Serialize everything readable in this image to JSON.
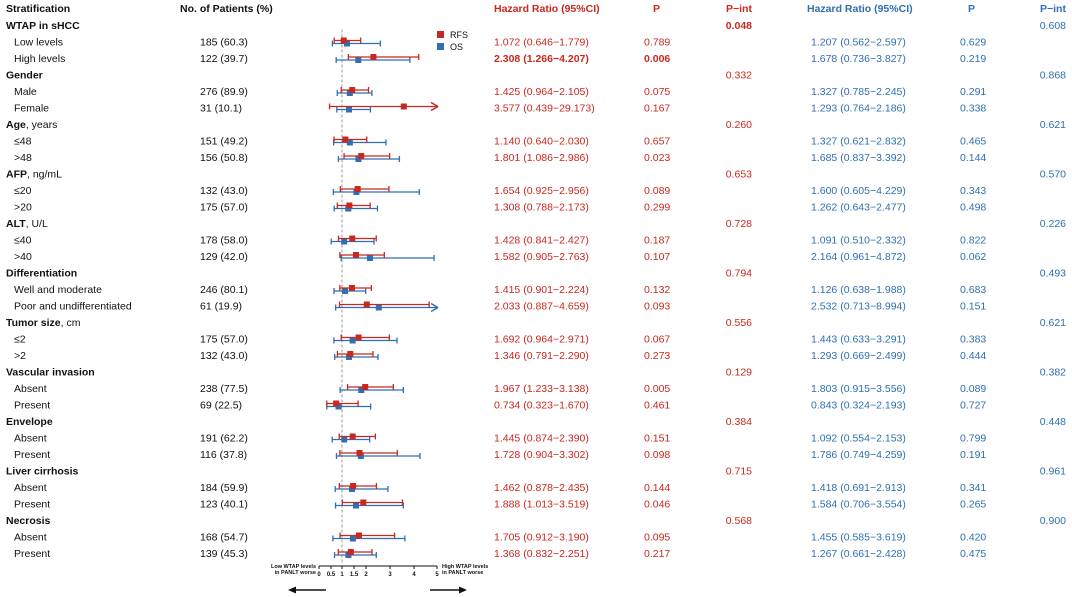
{
  "chart_data": {
    "type": "forest",
    "title": "",
    "columns": {
      "stratification": "Stratification",
      "patients": "No. of Patients (%)",
      "hr_rfs": "Hazard Ratio (95%CI)",
      "p_rfs": "P",
      "pint_rfs": "P−int",
      "hr_os": "Hazard Ratio (95%CI)",
      "p_os": "P",
      "pint_os": "P−int"
    },
    "legend": [
      {
        "name": "RFS",
        "color": "#c8281f"
      },
      {
        "name": "OS",
        "color": "#2f6fb2"
      }
    ],
    "axis": {
      "ticks": [
        0,
        0.5,
        1,
        1.5,
        2,
        3,
        4,
        5
      ],
      "tick_labels": [
        "0",
        "0.5",
        "1",
        "1.5",
        "2",
        "3",
        "4",
        "5"
      ],
      "reference_line": 1,
      "left_note": [
        "Low WTAP levels",
        "in PANLT worse"
      ],
      "right_note": [
        "High WTAP levels",
        "in PANLT worse"
      ]
    },
    "groups": [
      {
        "label": "WTAP in sHCC",
        "unit": "",
        "pint_rfs": "0.048",
        "pint_os": "0.608",
        "pint_rfs_bold": true,
        "rows": [
          {
            "label": "Low levels",
            "n": "185 (60.3)",
            "rfs": [
              1.072,
              0.646,
              1.779
            ],
            "rfs_text": "1.072 (0.646−1.779)",
            "p_rfs": "0.789",
            "os": [
              1.207,
              0.562,
              2.597
            ],
            "os_text": "1.207 (0.562−2.597)",
            "p_os": "0.629"
          },
          {
            "label": "High levels",
            "n": "122 (39.7)",
            "rfs": [
              2.308,
              1.266,
              4.207
            ],
            "rfs_text": "2.308 (1.266−4.207)",
            "p_rfs": "0.006",
            "bold_rfs": true,
            "os": [
              1.678,
              0.736,
              3.827
            ],
            "os_text": "1.678 (0.736−3.827)",
            "p_os": "0.219"
          }
        ]
      },
      {
        "label": "Gender",
        "unit": "",
        "pint_rfs": "0.332",
        "pint_os": "0.868",
        "rows": [
          {
            "label": "Male",
            "n": "276 (89.9)",
            "rfs": [
              1.425,
              0.964,
              2.105
            ],
            "rfs_text": "1.425 (0.964−2.105)",
            "p_rfs": "0.075",
            "os": [
              1.327,
              0.785,
              2.245
            ],
            "os_text": "1.327 (0.785−2.245)",
            "p_os": "0.291"
          },
          {
            "label": "Female",
            "n": "31 (10.1)",
            "rfs": [
              3.577,
              0.439,
              29.173
            ],
            "rfs_text": "3.577 (0.439−29.173)",
            "p_rfs": "0.167",
            "os": [
              1.293,
              0.764,
              2.186
            ],
            "os_text": "1.293 (0.764−2.186)",
            "p_os": "0.338"
          }
        ]
      },
      {
        "label": "Age",
        "unit": ", years",
        "pint_rfs": "0.260",
        "pint_os": "0.621",
        "rows": [
          {
            "label": "≤48",
            "n": "151 (49.2)",
            "rfs": [
              1.14,
              0.64,
              2.03
            ],
            "rfs_text": "1.140 (0.640−2.030)",
            "p_rfs": "0.657",
            "os": [
              1.327,
              0.621,
              2.832
            ],
            "os_text": "1.327 (0.621−2.832)",
            "p_os": "0.465"
          },
          {
            "label": ">48",
            "n": "156 (50.8)",
            "rfs": [
              1.801,
              1.086,
              2.986
            ],
            "rfs_text": "1.801 (1.086−2.986)",
            "p_rfs": "0.023",
            "os": [
              1.685,
              0.837,
              3.392
            ],
            "os_text": "1.685 (0.837−3.392)",
            "p_os": "0.144"
          }
        ]
      },
      {
        "label": "AFP",
        "unit": ", ng/mL",
        "pint_rfs": "0.653",
        "pint_os": "0.570",
        "rows": [
          {
            "label": "≤20",
            "n": "132 (43.0)",
            "rfs": [
              1.654,
              0.925,
              2.956
            ],
            "rfs_text": "1.654 (0.925−2.956)",
            "p_rfs": "0.089",
            "os": [
              1.6,
              0.605,
              4.229
            ],
            "os_text": "1.600 (0.605−4.229)",
            "p_os": "0.343"
          },
          {
            "label": ">20",
            "n": "175 (57.0)",
            "rfs": [
              1.308,
              0.788,
              2.173
            ],
            "rfs_text": "1.308 (0.788−2.173)",
            "p_rfs": "0.299",
            "os": [
              1.262,
              0.643,
              2.477
            ],
            "os_text": "1.262 (0.643−2.477)",
            "p_os": "0.498"
          }
        ]
      },
      {
        "label": "ALT",
        "unit": ", U/L",
        "pint_rfs": "0.728",
        "pint_os": "0.226",
        "rows": [
          {
            "label": "≤40",
            "n": "178 (58.0)",
            "rfs": [
              1.428,
              0.841,
              2.427
            ],
            "rfs_text": "1.428 (0.841−2.427)",
            "p_rfs": "0.187",
            "os": [
              1.091,
              0.51,
              2.332
            ],
            "os_text": "1.091 (0.510−2.332)",
            "p_os": "0.822"
          },
          {
            "label": ">40",
            "n": "129 (42.0)",
            "rfs": [
              1.582,
              0.905,
              2.763
            ],
            "rfs_text": "1.582 (0.905−2.763)",
            "p_rfs": "0.107",
            "os": [
              2.164,
              0.961,
              4.872
            ],
            "os_text": "2.164 (0.961−4.872)",
            "p_os": "0.062"
          }
        ]
      },
      {
        "label": "Differentiation",
        "unit": "",
        "pint_rfs": "0.794",
        "pint_os": "0.493",
        "rows": [
          {
            "label": "Well and moderate",
            "n": "246 (80.1)",
            "rfs": [
              1.415,
              0.901,
              2.224
            ],
            "rfs_text": "1.415 (0.901−2.224)",
            "p_rfs": "0.132",
            "os": [
              1.126,
              0.638,
              1.988
            ],
            "os_text": "1.126 (0.638−1.988)",
            "p_os": "0.683"
          },
          {
            "label": "Poor and undifferentiated",
            "n": "61 (19.9)",
            "rfs": [
              2.033,
              0.887,
              4.659
            ],
            "rfs_text": "2.033 (0.887−4.659)",
            "p_rfs": "0.093",
            "os": [
              2.532,
              0.713,
              8.994
            ],
            "os_text": "2.532 (0.713−8.994)",
            "p_os": "0.151"
          }
        ]
      },
      {
        "label": "Tumor size",
        "unit": ", cm",
        "pint_rfs": "0.556",
        "pint_os": "0.621",
        "rows": [
          {
            "label": "≤2",
            "n": "175 (57.0)",
            "rfs": [
              1.692,
              0.964,
              2.971
            ],
            "rfs_text": "1.692 (0.964−2.971)",
            "p_rfs": "0.067",
            "os": [
              1.443,
              0.633,
              3.291
            ],
            "os_text": "1.443 (0.633−3.291)",
            "p_os": "0.383"
          },
          {
            "label": ">2",
            "n": "132 (43.0)",
            "rfs": [
              1.346,
              0.791,
              2.29
            ],
            "rfs_text": "1.346 (0.791−2.290)",
            "p_rfs": "0.273",
            "os": [
              1.293,
              0.669,
              2.499
            ],
            "os_text": "1.293 (0.669−2.499)",
            "p_os": "0.444"
          }
        ]
      },
      {
        "label": "Vascular invasion",
        "unit": "",
        "pint_rfs": "0.129",
        "pint_os": "0.382",
        "rows": [
          {
            "label": "Absent",
            "n": "238 (77.5)",
            "rfs": [
              1.967,
              1.233,
              3.138
            ],
            "rfs_text": "1.967 (1.233−3.138)",
            "p_rfs": "0.005",
            "os": [
              1.803,
              0.915,
              3.556
            ],
            "os_text": "1.803 (0.915−3.556)",
            "p_os": "0.089"
          },
          {
            "label": "Present",
            "n": "69 (22.5)",
            "rfs": [
              0.734,
              0.323,
              1.67
            ],
            "rfs_text": "0.734 (0.323−1.670)",
            "p_rfs": "0.461",
            "os": [
              0.843,
              0.324,
              2.193
            ],
            "os_text": "0.843 (0.324−2.193)",
            "p_os": "0.727"
          }
        ]
      },
      {
        "label": "Envelope",
        "unit": "",
        "pint_rfs": "0.384",
        "pint_os": "0.448",
        "rows": [
          {
            "label": "Absent",
            "n": "191 (62.2)",
            "rfs": [
              1.445,
              0.874,
              2.39
            ],
            "rfs_text": "1.445 (0.874−2.390)",
            "p_rfs": "0.151",
            "os": [
              1.092,
              0.554,
              2.153
            ],
            "os_text": "1.092 (0.554−2.153)",
            "p_os": "0.799"
          },
          {
            "label": "Present",
            "n": "116 (37.8)",
            "rfs": [
              1.728,
              0.904,
              3.302
            ],
            "rfs_text": "1.728 (0.904−3.302)",
            "p_rfs": "0.098",
            "os": [
              1.786,
              0.749,
              4.259
            ],
            "os_text": "1.786 (0.749−4.259)",
            "p_os": "0.191"
          }
        ]
      },
      {
        "label": "Liver cirrhosis",
        "unit": "",
        "pint_rfs": "0.715",
        "pint_os": "0.961",
        "rows": [
          {
            "label": "Absent",
            "n": "184 (59.9)",
            "rfs": [
              1.462,
              0.878,
              2.435
            ],
            "rfs_text": "1.462 (0.878−2.435)",
            "p_rfs": "0.144",
            "os": [
              1.418,
              0.691,
              2.913
            ],
            "os_text": "1.418 (0.691−2.913)",
            "p_os": "0.341"
          },
          {
            "label": "Present",
            "n": "123 (40.1)",
            "rfs": [
              1.888,
              1.013,
              3.519
            ],
            "rfs_text": "1.888 (1.013−3.519)",
            "p_rfs": "0.046",
            "os": [
              1.584,
              0.706,
              3.554
            ],
            "os_text": "1.584 (0.706−3.554)",
            "p_os": "0.265"
          }
        ]
      },
      {
        "label": "Necrosis",
        "unit": "",
        "pint_rfs": "0.568",
        "pint_os": "0.900",
        "rows": [
          {
            "label": "Absent",
            "n": "168 (54.7)",
            "rfs": [
              1.705,
              0.912,
              3.19
            ],
            "rfs_text": "1.705 (0.912−3.190)",
            "p_rfs": "0.095",
            "os": [
              1.455,
              0.585,
              3.619
            ],
            "os_text": "1.455 (0.585−3.619)",
            "p_os": "0.420"
          },
          {
            "label": "Present",
            "n": "139 (45.3)",
            "rfs": [
              1.368,
              0.832,
              2.251
            ],
            "rfs_text": "1.368 (0.832−2.251)",
            "p_rfs": "0.217",
            "os": [
              1.267,
              0.661,
              2.428
            ],
            "os_text": "1.267 (0.661−2.428)",
            "p_os": "0.475"
          }
        ]
      }
    ]
  }
}
